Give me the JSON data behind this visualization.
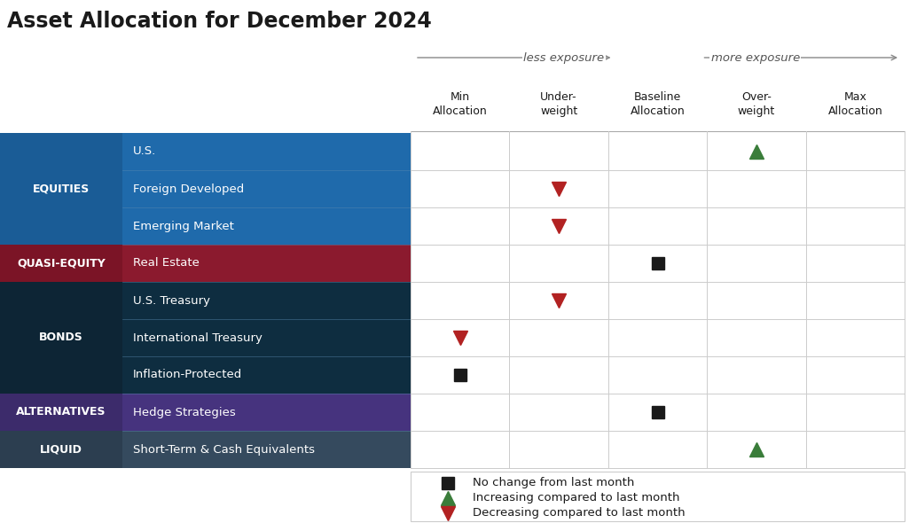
{
  "title": "Asset Allocation for December 2024",
  "title_fontsize": 17,
  "col_headers": [
    "Min\nAllocation",
    "Under-\nweight",
    "Baseline\nAllocation",
    "Over-\nweight",
    "Max\nAllocation"
  ],
  "arrow_label_left": "less exposure",
  "arrow_label_right": "more exposure",
  "rows": [
    {
      "category": "EQUITIES",
      "cat_color": "#1a5c96",
      "sub": "U.S.",
      "sub_color": "#1f6aab",
      "marker": "up_green",
      "col": 3
    },
    {
      "category": "EQUITIES",
      "cat_color": "#1a5c96",
      "sub": "Foreign Developed",
      "sub_color": "#1f6aab",
      "marker": "down_red",
      "col": 1
    },
    {
      "category": "EQUITIES",
      "cat_color": "#1a5c96",
      "sub": "Emerging Market",
      "sub_color": "#1f6aab",
      "marker": "down_red",
      "col": 1
    },
    {
      "category": "QUASI-EQUITY",
      "cat_color": "#7b1426",
      "sub": "Real Estate",
      "sub_color": "#8b1a2e",
      "marker": "square",
      "col": 2
    },
    {
      "category": "BONDS",
      "cat_color": "#0d2535",
      "sub": "U.S. Treasury",
      "sub_color": "#0e2d40",
      "marker": "down_red",
      "col": 1
    },
    {
      "category": "BONDS",
      "cat_color": "#0d2535",
      "sub": "International Treasury",
      "sub_color": "#0e2d40",
      "marker": "down_red",
      "col": 0
    },
    {
      "category": "BONDS",
      "cat_color": "#0d2535",
      "sub": "Inflation-Protected",
      "sub_color": "#0e2d40",
      "marker": "square",
      "col": 0
    },
    {
      "category": "ALTERNATIVES",
      "cat_color": "#3c2b6b",
      "sub": "Hedge Strategies",
      "sub_color": "#46337e",
      "marker": "square",
      "col": 2
    },
    {
      "category": "LIQUID",
      "cat_color": "#2c3e50",
      "sub": "Short-Term & Cash Equivalents",
      "sub_color": "#354a5e",
      "marker": "up_green",
      "col": 3
    }
  ],
  "green_color": "#3a7d3a",
  "red_color": "#b22222",
  "square_color": "#1a1a1a",
  "bg_color": "#ffffff",
  "grid_color": "#cccccc",
  "header_sep_color": "#aaaaaa",
  "divider_color_left": "#4a7aaa",
  "divider_color_dark": "#3a5a6a"
}
